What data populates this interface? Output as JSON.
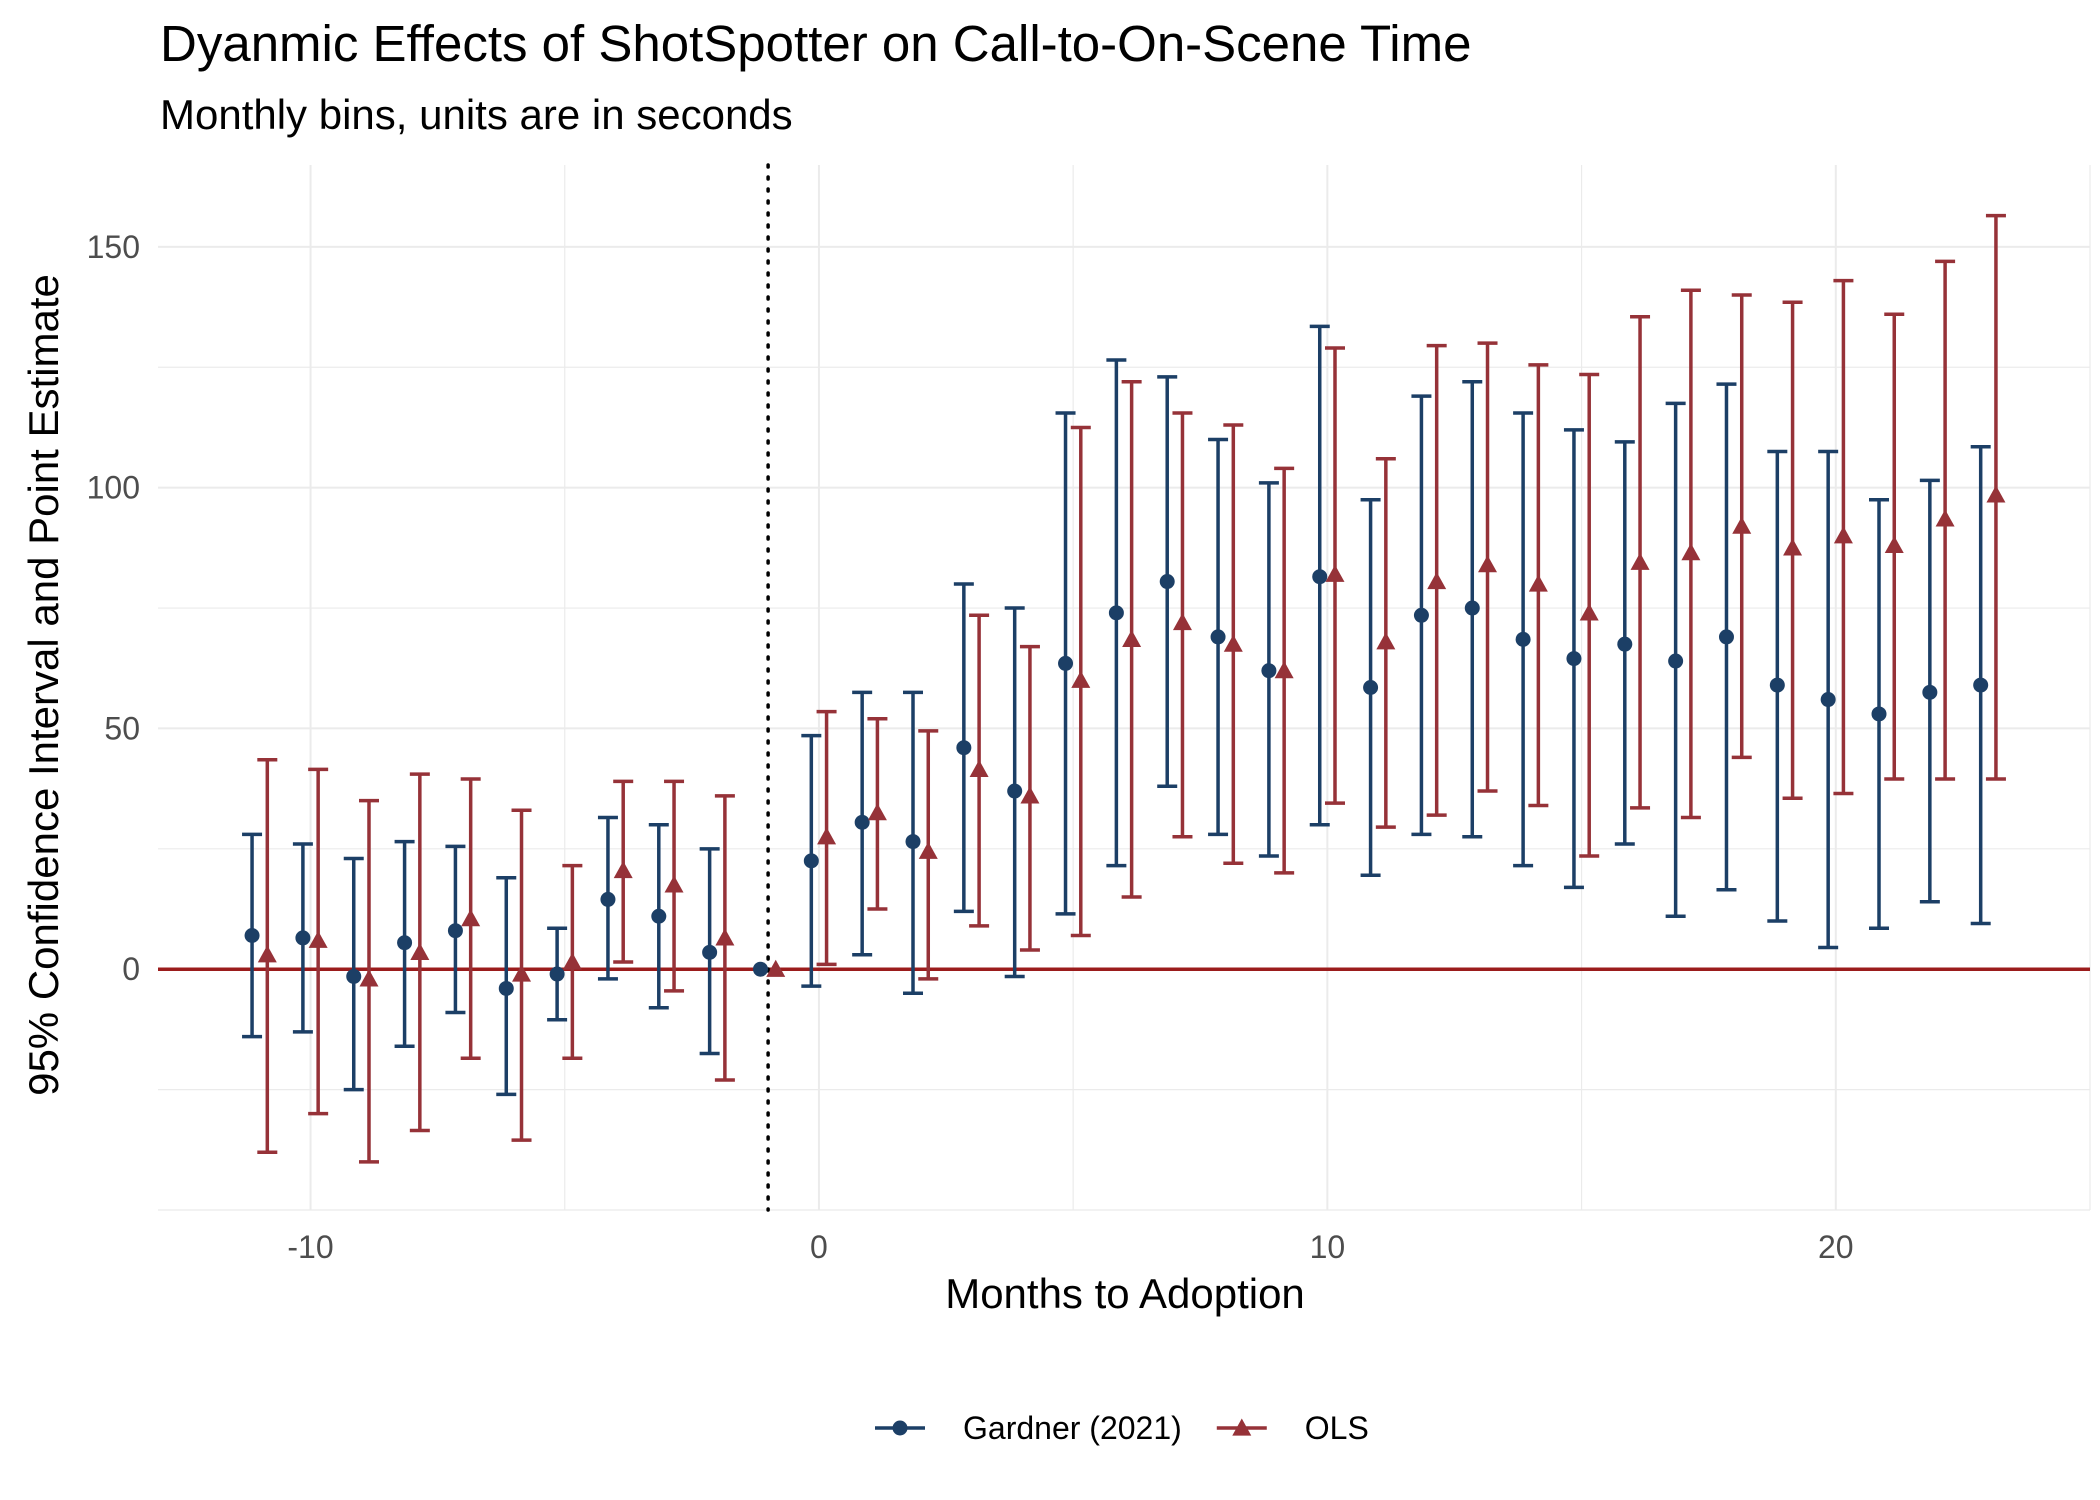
{
  "chart_data": {
    "type": "scatter",
    "title": "Dyanmic Effects of ShotSpotter on Call-to-On-Scene Time",
    "subtitle": "Monthly bins, units are in seconds",
    "xlabel": "Months to Adoption",
    "ylabel": "95% Confidence Interval and Point Estimate",
    "xlim": [
      -13,
      25
    ],
    "ylim": [
      -50,
      167
    ],
    "x_ticks": [
      -10,
      0,
      10,
      20
    ],
    "x_tick_labels": [
      "-10",
      "0",
      "10",
      "20"
    ],
    "y_ticks": [
      0,
      50,
      100,
      150
    ],
    "y_tick_labels": [
      "0",
      "50",
      "100",
      "150"
    ],
    "grid": true,
    "legend_position": "bottom",
    "reference_lines": {
      "horizontal": {
        "y": 0,
        "color": "#9b1c1c",
        "style": "solid"
      },
      "vertical": {
        "x": -1,
        "color": "#000000",
        "style": "dotted"
      }
    },
    "series": [
      {
        "name": "Gardner (2021)",
        "marker": "circle",
        "color": "#1c3f66",
        "points": [
          {
            "x": -11,
            "y": 7,
            "lo": -14,
            "hi": 28
          },
          {
            "x": -10,
            "y": 6.5,
            "lo": -13,
            "hi": 26
          },
          {
            "x": -9,
            "y": -1.5,
            "lo": -25,
            "hi": 23
          },
          {
            "x": -8,
            "y": 5.5,
            "lo": -16,
            "hi": 26.5
          },
          {
            "x": -7,
            "y": 8,
            "lo": -9,
            "hi": 25.5
          },
          {
            "x": -6,
            "y": -4,
            "lo": -26,
            "hi": 19
          },
          {
            "x": -5,
            "y": -1,
            "lo": -10.5,
            "hi": 8.5
          },
          {
            "x": -4,
            "y": 14.5,
            "lo": -2,
            "hi": 31.5
          },
          {
            "x": -3,
            "y": 11,
            "lo": -8,
            "hi": 30
          },
          {
            "x": -2,
            "y": 3.5,
            "lo": -17.5,
            "hi": 25
          },
          {
            "x": -1,
            "y": 0,
            "lo": 0,
            "hi": 0
          },
          {
            "x": 0,
            "y": 22.5,
            "lo": -3.5,
            "hi": 48.5
          },
          {
            "x": 1,
            "y": 30.5,
            "lo": 3,
            "hi": 57.5
          },
          {
            "x": 2,
            "y": 26.5,
            "lo": -5,
            "hi": 57.5
          },
          {
            "x": 3,
            "y": 46,
            "lo": 12,
            "hi": 80
          },
          {
            "x": 4,
            "y": 37,
            "lo": -1.5,
            "hi": 75
          },
          {
            "x": 5,
            "y": 63.5,
            "lo": 11.5,
            "hi": 115.5
          },
          {
            "x": 6,
            "y": 74,
            "lo": 21.5,
            "hi": 126.5
          },
          {
            "x": 7,
            "y": 80.5,
            "lo": 38,
            "hi": 123
          },
          {
            "x": 8,
            "y": 69,
            "lo": 28,
            "hi": 110
          },
          {
            "x": 9,
            "y": 62,
            "lo": 23.5,
            "hi": 101
          },
          {
            "x": 10,
            "y": 81.5,
            "lo": 30,
            "hi": 133.5
          },
          {
            "x": 11,
            "y": 58.5,
            "lo": 19.5,
            "hi": 97.5
          },
          {
            "x": 12,
            "y": 73.5,
            "lo": 28,
            "hi": 119
          },
          {
            "x": 13,
            "y": 75,
            "lo": 27.5,
            "hi": 122
          },
          {
            "x": 14,
            "y": 68.5,
            "lo": 21.5,
            "hi": 115.5
          },
          {
            "x": 15,
            "y": 64.5,
            "lo": 17,
            "hi": 112
          },
          {
            "x": 16,
            "y": 67.5,
            "lo": 26,
            "hi": 109.5
          },
          {
            "x": 17,
            "y": 64,
            "lo": 11,
            "hi": 117.5
          },
          {
            "x": 18,
            "y": 69,
            "lo": 16.5,
            "hi": 121.5
          },
          {
            "x": 19,
            "y": 59,
            "lo": 10,
            "hi": 107.5
          },
          {
            "x": 20,
            "y": 56,
            "lo": 4.5,
            "hi": 107.5
          },
          {
            "x": 21,
            "y": 53,
            "lo": 8.5,
            "hi": 97.5
          },
          {
            "x": 22,
            "y": 57.5,
            "lo": 14,
            "hi": 101.5
          },
          {
            "x": 23,
            "y": 59,
            "lo": 9.5,
            "hi": 108.5
          }
        ]
      },
      {
        "name": "OLS",
        "marker": "triangle",
        "color": "#963238",
        "points": [
          {
            "x": -11,
            "y": 3,
            "lo": -38,
            "hi": 43.5
          },
          {
            "x": -10,
            "y": 6,
            "lo": -30,
            "hi": 41.5
          },
          {
            "x": -9,
            "y": -2,
            "lo": -40,
            "hi": 35
          },
          {
            "x": -8,
            "y": 3.5,
            "lo": -33.5,
            "hi": 40.5
          },
          {
            "x": -7,
            "y": 10.5,
            "lo": -18.5,
            "hi": 39.5
          },
          {
            "x": -6,
            "y": -1,
            "lo": -35.5,
            "hi": 33
          },
          {
            "x": -5,
            "y": 1.5,
            "lo": -18.5,
            "hi": 21.5
          },
          {
            "x": -4,
            "y": 20.5,
            "lo": 1.5,
            "hi": 39
          },
          {
            "x": -3,
            "y": 17.5,
            "lo": -4.5,
            "hi": 39
          },
          {
            "x": -2,
            "y": 6.5,
            "lo": -23,
            "hi": 36
          },
          {
            "x": -1,
            "y": 0,
            "lo": 0,
            "hi": 0
          },
          {
            "x": 0,
            "y": 27.5,
            "lo": 1,
            "hi": 53.5
          },
          {
            "x": 1,
            "y": 32.5,
            "lo": 12.5,
            "hi": 52
          },
          {
            "x": 2,
            "y": 24.5,
            "lo": -2,
            "hi": 49.5
          },
          {
            "x": 3,
            "y": 41.5,
            "lo": 9,
            "hi": 73.5
          },
          {
            "x": 4,
            "y": 36,
            "lo": 4,
            "hi": 67
          },
          {
            "x": 5,
            "y": 60,
            "lo": 7,
            "hi": 112.5
          },
          {
            "x": 6,
            "y": 68.5,
            "lo": 15,
            "hi": 122
          },
          {
            "x": 7,
            "y": 72,
            "lo": 27.5,
            "hi": 115.5
          },
          {
            "x": 8,
            "y": 67.5,
            "lo": 22,
            "hi": 113
          },
          {
            "x": 9,
            "y": 62,
            "lo": 20,
            "hi": 104
          },
          {
            "x": 10,
            "y": 82,
            "lo": 34.5,
            "hi": 129
          },
          {
            "x": 11,
            "y": 68,
            "lo": 29.5,
            "hi": 106
          },
          {
            "x": 12,
            "y": 80.5,
            "lo": 32,
            "hi": 129.5
          },
          {
            "x": 13,
            "y": 84,
            "lo": 37,
            "hi": 130
          },
          {
            "x": 14,
            "y": 80,
            "lo": 34,
            "hi": 125.5
          },
          {
            "x": 15,
            "y": 74,
            "lo": 23.5,
            "hi": 123.5
          },
          {
            "x": 16,
            "y": 84.5,
            "lo": 33.5,
            "hi": 135.5
          },
          {
            "x": 17,
            "y": 86.5,
            "lo": 31.5,
            "hi": 141
          },
          {
            "x": 18,
            "y": 92,
            "lo": 44,
            "hi": 140
          },
          {
            "x": 19,
            "y": 87.5,
            "lo": 35.5,
            "hi": 138.5
          },
          {
            "x": 20,
            "y": 90,
            "lo": 36.5,
            "hi": 143
          },
          {
            "x": 21,
            "y": 88,
            "lo": 39.5,
            "hi": 136
          },
          {
            "x": 22,
            "y": 93.5,
            "lo": 39.5,
            "hi": 147
          },
          {
            "x": 23,
            "y": 98.5,
            "lo": 39.5,
            "hi": 156.5
          }
        ]
      }
    ]
  }
}
